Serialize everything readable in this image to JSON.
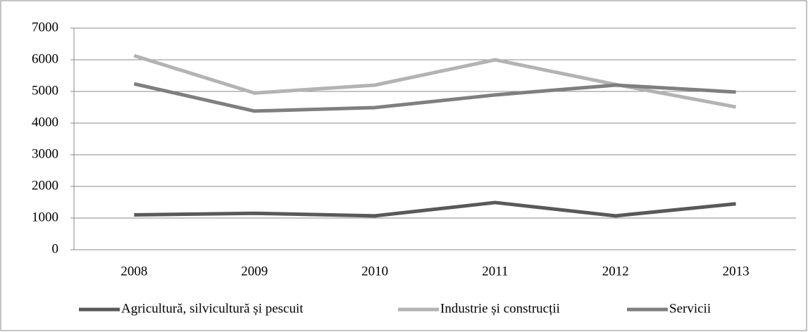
{
  "chart_data": {
    "type": "line",
    "categories": [
      "2008",
      "2009",
      "2010",
      "2011",
      "2012",
      "2013"
    ],
    "series": [
      {
        "name": "Agricultură, silvicultură și pescuit",
        "color": "#595959",
        "values": [
          1100,
          1150,
          1070,
          1490,
          1070,
          1450
        ]
      },
      {
        "name": "Industrie și construcții",
        "color": "#b3b3b3",
        "values": [
          6130,
          4950,
          5200,
          6000,
          5220,
          4510
        ]
      },
      {
        "name": "Servicii",
        "color": "#7f7f7f",
        "values": [
          5240,
          4380,
          4490,
          4890,
          5200,
          4980
        ]
      }
    ],
    "ylim": [
      0,
      7000
    ],
    "yticks": [
      0,
      1000,
      2000,
      3000,
      4000,
      5000,
      6000,
      7000
    ],
    "grid": true,
    "legend": "bottom"
  }
}
